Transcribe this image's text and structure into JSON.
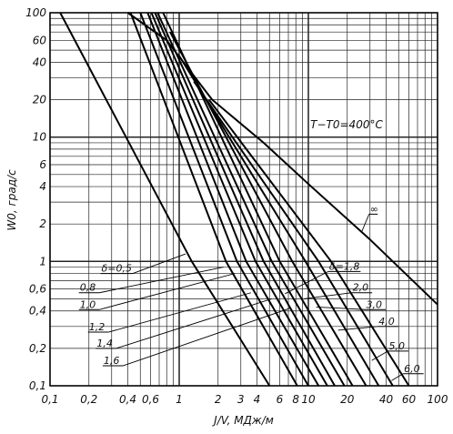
{
  "chart_data": {
    "type": "line",
    "xscale": "log",
    "yscale": "log",
    "xlim": [
      0.1,
      100
    ],
    "ylim": [
      0.1,
      100
    ],
    "grid": true,
    "xlabel": "J/V, МДж/м",
    "ylabel": "W0, град/с",
    "annotation": "T−T0=400°C",
    "x_ticks": [
      "0,1",
      "0,2",
      "0,4",
      "0,6",
      "1",
      "2",
      "3",
      "4",
      "6",
      "8",
      "10",
      "20",
      "40",
      "60",
      "100"
    ],
    "y_ticks": [
      "100",
      "60",
      "40",
      "20",
      "10",
      "6",
      "4",
      "2",
      "1",
      "0,6",
      "0,4",
      "0,2",
      "0,1"
    ],
    "series": [
      {
        "name": "δ=0,5",
        "points": [
          [
            0.12,
            100
          ],
          [
            1.25,
            1
          ],
          [
            5.0,
            0.1
          ]
        ]
      },
      {
        "name": "0,8",
        "points": [
          [
            0.42,
            100
          ],
          [
            2.3,
            1
          ],
          [
            8.2,
            0.1
          ]
        ]
      },
      {
        "name": "1,0",
        "points": [
          [
            0.5,
            100
          ],
          [
            2.8,
            1
          ],
          [
            10.0,
            0.1
          ]
        ]
      },
      {
        "name": "1,2",
        "points": [
          [
            0.57,
            100
          ],
          [
            3.3,
            1
          ],
          [
            12.0,
            0.1
          ]
        ]
      },
      {
        "name": "1,4",
        "points": [
          [
            0.61,
            100
          ],
          [
            3.9,
            1
          ],
          [
            14.0,
            0.1
          ]
        ]
      },
      {
        "name": "1,6",
        "points": [
          [
            0.65,
            100
          ],
          [
            4.5,
            1
          ],
          [
            16.0,
            0.1
          ]
        ]
      },
      {
        "name": "δ=1,8",
        "points": [
          [
            0.68,
            100
          ],
          [
            5.2,
            1
          ],
          [
            19.0,
            0.1
          ]
        ]
      },
      {
        "name": "2,0",
        "points": [
          [
            0.75,
            100
          ],
          [
            6.0,
            1
          ],
          [
            22.0,
            0.1
          ]
        ]
      },
      {
        "name": "3,0",
        "points": [
          [
            0.85,
            70
          ],
          [
            7.5,
            1
          ],
          [
            28.0,
            0.1
          ]
        ]
      },
      {
        "name": "4,0",
        "points": [
          [
            1.0,
            45
          ],
          [
            9.5,
            1
          ],
          [
            35.0,
            0.1
          ]
        ]
      },
      {
        "name": "5,0",
        "points": [
          [
            1.3,
            28
          ],
          [
            12.0,
            1
          ],
          [
            45.0,
            0.1
          ]
        ]
      },
      {
        "name": "6,0",
        "points": [
          [
            1.7,
            20
          ],
          [
            15.0,
            1
          ],
          [
            60.0,
            0.1
          ]
        ]
      },
      {
        "name": "∞",
        "points": [
          [
            0.4,
            100
          ],
          [
            0.8,
            60
          ],
          [
            1.8,
            20
          ],
          [
            4.5,
            9
          ],
          [
            10.0,
            4.2
          ],
          [
            30.0,
            1.5
          ],
          [
            100.0,
            0.45
          ]
        ]
      }
    ]
  }
}
